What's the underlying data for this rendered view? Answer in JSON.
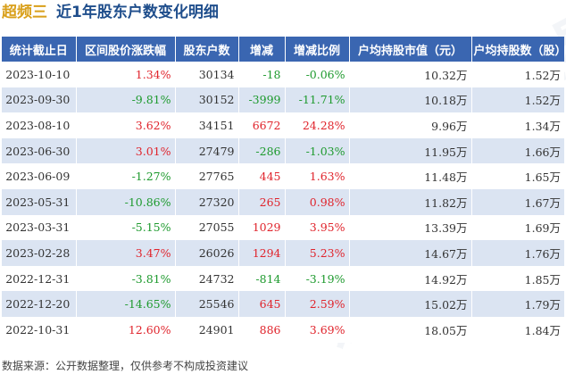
{
  "header": {
    "stock_name": "超频三",
    "title": "近1年股东户数变化明细"
  },
  "columns": [
    "统计截止日",
    "区间股价涨跌幅",
    "股东户数",
    "增减",
    "增减比例",
    "户均持股市值（元）",
    "户均持股数（股）"
  ],
  "rows": [
    {
      "date": "2023-10-10",
      "price_change": "1.34%",
      "holders": "30134",
      "change": "-18",
      "change_ratio": "-0.06%",
      "avg_value": "10.32万",
      "avg_shares": "1.52万"
    },
    {
      "date": "2023-09-30",
      "price_change": "-9.81%",
      "holders": "30152",
      "change": "-3999",
      "change_ratio": "-11.71%",
      "avg_value": "10.18万",
      "avg_shares": "1.52万"
    },
    {
      "date": "2023-08-10",
      "price_change": "3.62%",
      "holders": "34151",
      "change": "6672",
      "change_ratio": "24.28%",
      "avg_value": "9.96万",
      "avg_shares": "1.34万"
    },
    {
      "date": "2023-06-30",
      "price_change": "3.01%",
      "holders": "27479",
      "change": "-286",
      "change_ratio": "-1.03%",
      "avg_value": "11.95万",
      "avg_shares": "1.66万"
    },
    {
      "date": "2023-06-09",
      "price_change": "-1.27%",
      "holders": "27765",
      "change": "445",
      "change_ratio": "1.63%",
      "avg_value": "11.48万",
      "avg_shares": "1.65万"
    },
    {
      "date": "2023-05-31",
      "price_change": "-10.86%",
      "holders": "27320",
      "change": "265",
      "change_ratio": "0.98%",
      "avg_value": "11.82万",
      "avg_shares": "1.67万"
    },
    {
      "date": "2023-03-31",
      "price_change": "-5.15%",
      "holders": "27055",
      "change": "1029",
      "change_ratio": "3.95%",
      "avg_value": "13.39万",
      "avg_shares": "1.69万"
    },
    {
      "date": "2023-02-28",
      "price_change": "3.47%",
      "holders": "26026",
      "change": "1294",
      "change_ratio": "5.23%",
      "avg_value": "14.67万",
      "avg_shares": "1.76万"
    },
    {
      "date": "2022-12-31",
      "price_change": "-3.81%",
      "holders": "24732",
      "change": "-814",
      "change_ratio": "-3.19%",
      "avg_value": "14.92万",
      "avg_shares": "1.85万"
    },
    {
      "date": "2022-12-20",
      "price_change": "-14.65%",
      "holders": "25546",
      "change": "645",
      "change_ratio": "2.59%",
      "avg_value": "15.02万",
      "avg_shares": "1.79万"
    },
    {
      "date": "2022-10-31",
      "price_change": "12.60%",
      "holders": "24901",
      "change": "886",
      "change_ratio": "3.69%",
      "avg_value": "18.05万",
      "avg_shares": "1.84万"
    }
  ],
  "colors": {
    "header_bg": "#3a66b1",
    "row_alt": "#dbe4f2",
    "positive": "#e0242c",
    "negative": "#1e9a2e",
    "stock_name": "#d9a01b",
    "title": "#1f4e8c"
  },
  "footer": "数据来源：公开数据整理，仅供参考不构成投资建议",
  "chart_data": {
    "type": "table",
    "columns": [
      "统计截止日",
      "区间股价涨跌幅",
      "股东户数",
      "增减",
      "增减比例",
      "户均持股市值（元）",
      "户均持股数（股）"
    ],
    "rows": [
      [
        "2023-10-10",
        "1.34%",
        "30134",
        "-18",
        "-0.06%",
        "10.32万",
        "1.52万"
      ],
      [
        "2023-09-30",
        "-9.81%",
        "30152",
        "-3999",
        "-11.71%",
        "10.18万",
        "1.52万"
      ],
      [
        "2023-08-10",
        "3.62%",
        "34151",
        "6672",
        "24.28%",
        "9.96万",
        "1.34万"
      ],
      [
        "2023-06-30",
        "3.01%",
        "27479",
        "-286",
        "-1.03%",
        "11.95万",
        "1.66万"
      ],
      [
        "2023-06-09",
        "-1.27%",
        "27765",
        "445",
        "1.63%",
        "11.48万",
        "1.65万"
      ],
      [
        "2023-05-31",
        "-10.86%",
        "27320",
        "265",
        "0.98%",
        "11.82万",
        "1.67万"
      ],
      [
        "2023-03-31",
        "-5.15%",
        "27055",
        "1029",
        "3.95%",
        "13.39万",
        "1.69万"
      ],
      [
        "2023-02-28",
        "3.47%",
        "26026",
        "1294",
        "5.23%",
        "14.67万",
        "1.76万"
      ],
      [
        "2022-12-31",
        "-3.81%",
        "24732",
        "-814",
        "-3.19%",
        "14.92万",
        "1.85万"
      ],
      [
        "2022-12-20",
        "-14.65%",
        "25546",
        "645",
        "2.59%",
        "15.02万",
        "1.79万"
      ],
      [
        "2022-10-31",
        "12.60%",
        "24901",
        "886",
        "3.69%",
        "18.05万",
        "1.84万"
      ]
    ]
  }
}
